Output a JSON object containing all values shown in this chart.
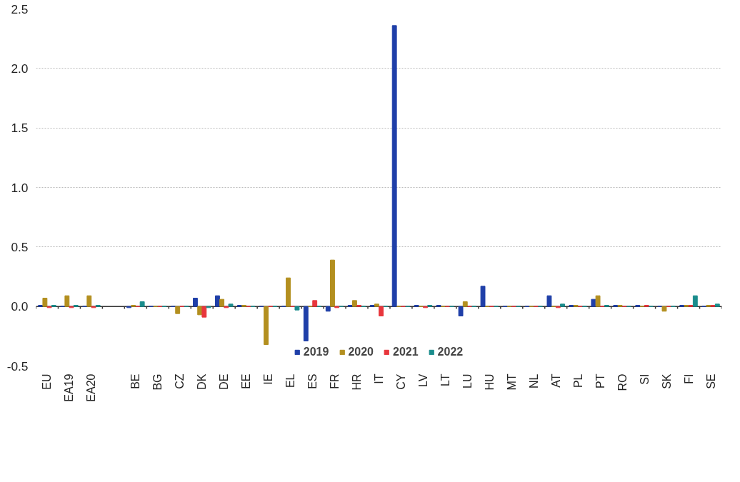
{
  "chart_data": {
    "type": "bar",
    "categories": [
      "EU",
      "EA19",
      "EA20",
      null,
      "BE",
      "BG",
      "CZ",
      "DK",
      "DE",
      "EE",
      "IE",
      "EL",
      "ES",
      "FR",
      "HR",
      "IT",
      "CY",
      "LV",
      "LT",
      "LU",
      "HU",
      "MT",
      "NL",
      "AT",
      "PL",
      "PT",
      "RO",
      "SI",
      "SK",
      "FI",
      "SE"
    ],
    "series": [
      {
        "name": "2019",
        "color": "#1f3fa8",
        "values": [
          0.01,
          0.0,
          0.0,
          null,
          -0.01,
          0,
          0,
          0.07,
          0.09,
          0.01,
          0,
          0,
          -0.29,
          -0.04,
          0.01,
          0.01,
          2.36,
          0.01,
          0.01,
          -0.08,
          0.17,
          0,
          0,
          0.09,
          0.01,
          0.06,
          0.01,
          0.01,
          0,
          0.01,
          0
        ]
      },
      {
        "name": "2020",
        "color": "#b38f1f",
        "values": [
          0.07,
          0.09,
          0.09,
          null,
          0.01,
          0,
          -0.06,
          -0.07,
          0.06,
          0.01,
          -0.32,
          0.24,
          0,
          0.39,
          0.05,
          0.02,
          0,
          0,
          0,
          0.04,
          0,
          0,
          0,
          0,
          0.01,
          0.09,
          0.01,
          0,
          -0.04,
          0.01,
          0.01
        ]
      },
      {
        "name": "2021",
        "color": "#e8363c",
        "values": [
          -0.01,
          -0.01,
          -0.01,
          null,
          0,
          0,
          0,
          -0.09,
          -0.01,
          0,
          0,
          0,
          0.05,
          -0.01,
          0.01,
          -0.08,
          0,
          -0.01,
          0,
          0,
          0,
          0,
          0,
          -0.01,
          0,
          0,
          0,
          0.01,
          0,
          0.01,
          0.01
        ]
      },
      {
        "name": "2022",
        "color": "#1a8c8c",
        "values": [
          0.01,
          0.01,
          0.01,
          null,
          0.04,
          0,
          0,
          -0.01,
          0.02,
          0,
          0,
          -0.03,
          0,
          0,
          0,
          0,
          0,
          0.01,
          0,
          0,
          0,
          0,
          0,
          0.02,
          0,
          0.01,
          0,
          0,
          0,
          0.09,
          0.02
        ]
      }
    ],
    "ylim": [
      -0.5,
      2.5
    ],
    "yticks": [
      -0.5,
      {
        "value": 0,
        "label": "0.0"
      },
      0.5,
      {
        "value": 1,
        "label": "1.0"
      },
      1.5,
      {
        "value": 2,
        "label": "2.0"
      },
      2.5
    ],
    "grid": "y",
    "legend": "bottom"
  }
}
